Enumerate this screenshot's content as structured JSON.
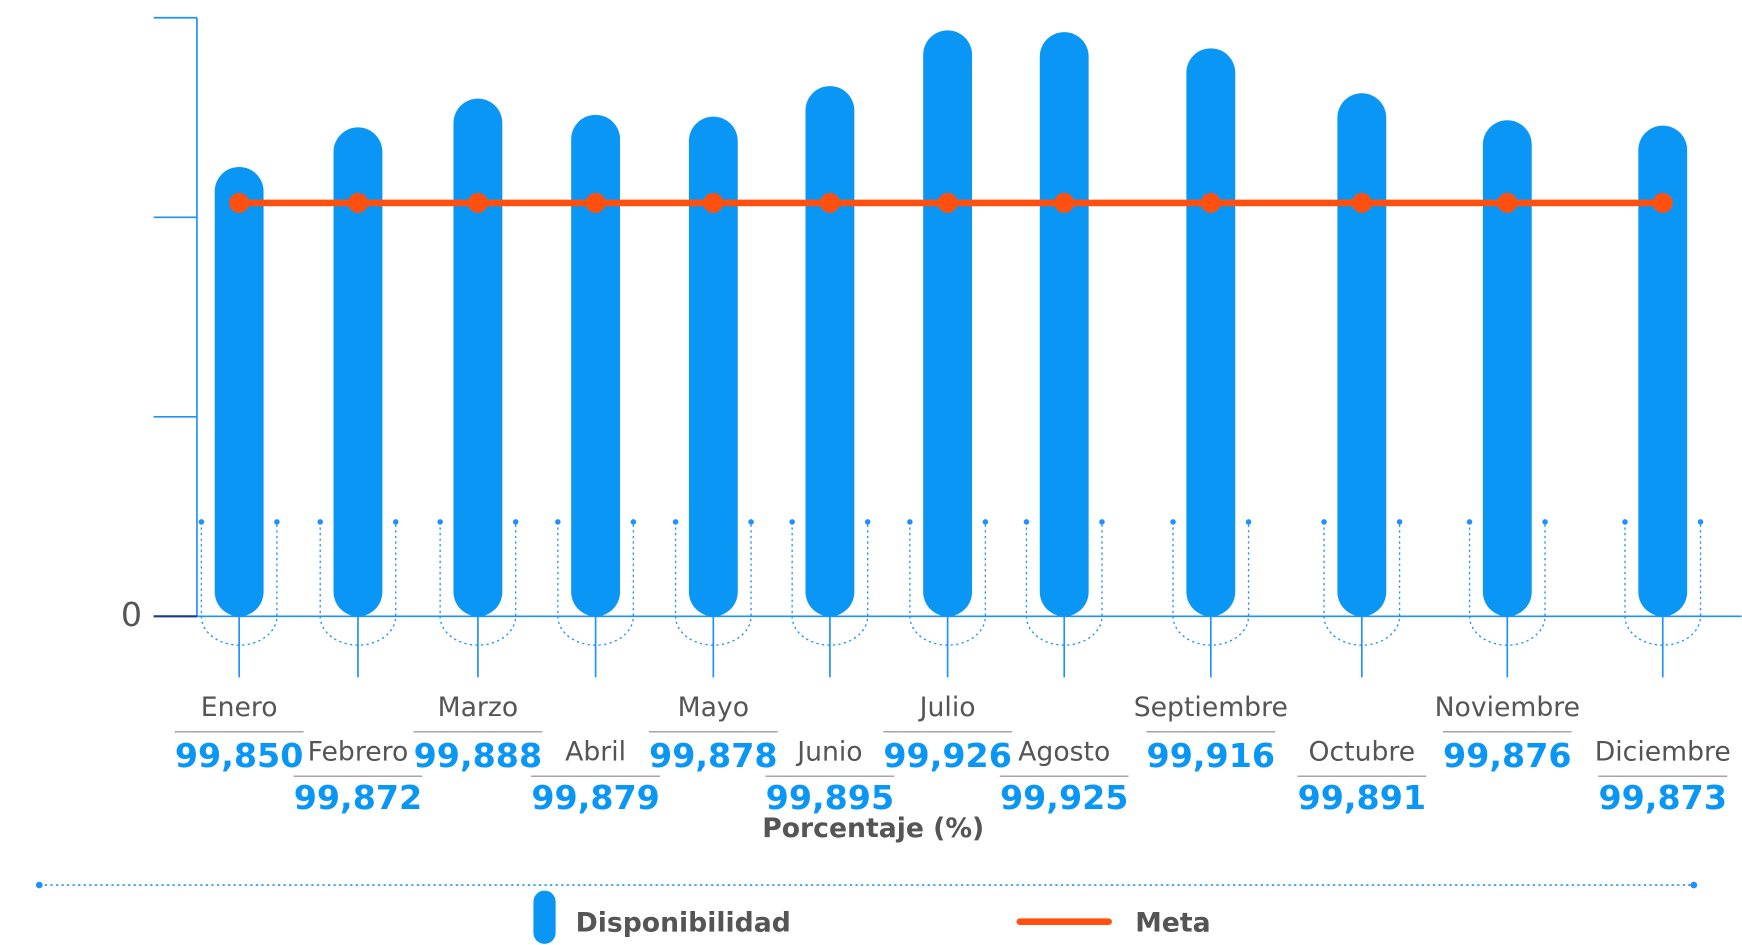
{
  "chart_data": {
    "type": "bar",
    "categories": [
      "Enero",
      "Febrero",
      "Marzo",
      "Abril",
      "Mayo",
      "Junio",
      "Julio",
      "Agosto",
      "Septiembre",
      "Octubre",
      "Noviembre",
      "Diciembre"
    ],
    "series": [
      {
        "name": "Disponibilidad",
        "type": "bar",
        "color": "#0a96f5",
        "values": [
          99.85,
          99.872,
          99.888,
          99.879,
          99.878,
          99.895,
          99.926,
          99.925,
          99.916,
          99.891,
          99.876,
          99.873
        ],
        "value_labels": [
          "99,850",
          "99,872",
          "99,888",
          "99,879",
          "99,878",
          "99,895",
          "99,926",
          "99,925",
          "99,916",
          "99,891",
          "99,876",
          "99,873"
        ]
      },
      {
        "name": "Meta",
        "type": "line",
        "color": "#ff5010",
        "values": [
          99.83,
          99.83,
          99.83,
          99.83,
          99.83,
          99.83,
          99.83,
          99.83,
          99.83,
          99.83,
          99.83,
          99.83
        ]
      }
    ],
    "x_label": "Porcentaje (%)",
    "ylim": [
      99.6,
      99.933
    ],
    "yticks": [
      {
        "value": 99.6,
        "label": "0"
      }
    ]
  }
}
